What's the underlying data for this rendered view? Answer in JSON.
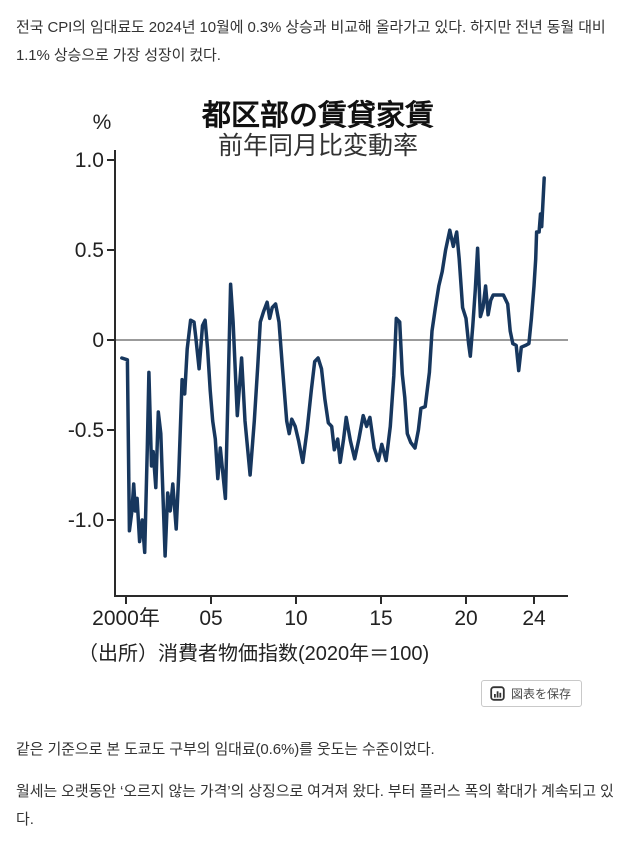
{
  "article": {
    "p1": "전국 CPI의 임대료도 2024년 10월에 0.3% 상승과 비교해 올라가고 있다. 하지만 전년 동월 대비 1.1% 상승으로 가장 성장이 컸다.",
    "p2": "같은 기준으로 본 도쿄도 구부의 임대료(0.6%)를 웃도는 수준이었다.",
    "p3": "월세는 오랫동안 ‘오르지 않는 가격’의 상징으로 여겨져 왔다. 부터 플러스 폭의 확대가 계속되고 있다."
  },
  "chart": {
    "save_button": {
      "label": "図表を保存",
      "icon": "bar-chart-icon"
    }
  },
  "chart_data": {
    "type": "line",
    "title": "都区部の賃貸家賃",
    "subtitle": "前年同月比変動率",
    "unit_label": "%",
    "source": "（出所）消費者物価指数(2020年＝100)",
    "line_color": "#17375e",
    "axis_color": "#2a2a2a",
    "zero_line_color": "#7a7a7a",
    "xlabel": "",
    "ylabel": "%",
    "ylim": [
      -1.45,
      1.05
    ],
    "xlim": [
      1999.5,
      2026.0
    ],
    "grid": "zero-line-only",
    "legend": "none",
    "y_ticks": [
      {
        "label": "1.0",
        "value": 1.0
      },
      {
        "label": "0.5",
        "value": 0.5
      },
      {
        "label": "0",
        "value": 0.0
      },
      {
        "label": "-0.5",
        "value": -0.5
      },
      {
        "label": "-1.0",
        "value": -1.0
      }
    ],
    "x_ticks": [
      {
        "label": "2000年",
        "value": 2000
      },
      {
        "label": "05",
        "value": 2005
      },
      {
        "label": "10",
        "value": 2010
      },
      {
        "label": "15",
        "value": 2015
      },
      {
        "label": "20",
        "value": 2020
      },
      {
        "label": "24",
        "value": 2024
      }
    ],
    "series": [
      {
        "name": "都区部の賃貸家賃 前年同月比変動率 (%)",
        "points": [
          [
            1999.75,
            -0.1
          ],
          [
            2000.08,
            -0.11
          ],
          [
            2000.2,
            -1.06
          ],
          [
            2000.35,
            -0.95
          ],
          [
            2000.45,
            -0.8
          ],
          [
            2000.55,
            -0.95
          ],
          [
            2000.65,
            -0.88
          ],
          [
            2000.8,
            -1.12
          ],
          [
            2000.95,
            -1.0
          ],
          [
            2001.1,
            -1.18
          ],
          [
            2001.25,
            -0.6
          ],
          [
            2001.35,
            -0.18
          ],
          [
            2001.5,
            -0.7
          ],
          [
            2001.6,
            -0.62
          ],
          [
            2001.75,
            -0.82
          ],
          [
            2001.9,
            -0.4
          ],
          [
            2002.05,
            -0.52
          ],
          [
            2002.3,
            -1.2
          ],
          [
            2002.45,
            -0.85
          ],
          [
            2002.6,
            -0.95
          ],
          [
            2002.75,
            -0.8
          ],
          [
            2002.95,
            -1.05
          ],
          [
            2003.1,
            -0.75
          ],
          [
            2003.3,
            -0.22
          ],
          [
            2003.45,
            -0.3
          ],
          [
            2003.6,
            -0.05
          ],
          [
            2003.8,
            0.11
          ],
          [
            2004.0,
            0.1
          ],
          [
            2004.1,
            0.02
          ],
          [
            2004.3,
            -0.16
          ],
          [
            2004.5,
            0.08
          ],
          [
            2004.65,
            0.11
          ],
          [
            2004.8,
            -0.05
          ],
          [
            2004.95,
            -0.28
          ],
          [
            2005.1,
            -0.45
          ],
          [
            2005.25,
            -0.55
          ],
          [
            2005.4,
            -0.77
          ],
          [
            2005.55,
            -0.6
          ],
          [
            2005.85,
            -0.88
          ],
          [
            2006.0,
            -0.3
          ],
          [
            2006.15,
            0.31
          ],
          [
            2006.3,
            0.1
          ],
          [
            2006.55,
            -0.42
          ],
          [
            2006.8,
            -0.1
          ],
          [
            2007.0,
            -0.45
          ],
          [
            2007.3,
            -0.75
          ],
          [
            2007.55,
            -0.45
          ],
          [
            2007.75,
            -0.14
          ],
          [
            2007.9,
            0.1
          ],
          [
            2008.1,
            0.16
          ],
          [
            2008.3,
            0.21
          ],
          [
            2008.45,
            0.12
          ],
          [
            2008.6,
            0.18
          ],
          [
            2008.8,
            0.2
          ],
          [
            2009.0,
            0.1
          ],
          [
            2009.2,
            -0.15
          ],
          [
            2009.45,
            -0.45
          ],
          [
            2009.6,
            -0.52
          ],
          [
            2009.75,
            -0.44
          ],
          [
            2009.95,
            -0.48
          ],
          [
            2010.15,
            -0.56
          ],
          [
            2010.4,
            -0.68
          ],
          [
            2010.65,
            -0.5
          ],
          [
            2010.9,
            -0.28
          ],
          [
            2011.1,
            -0.12
          ],
          [
            2011.3,
            -0.1
          ],
          [
            2011.5,
            -0.16
          ],
          [
            2011.7,
            -0.33
          ],
          [
            2011.9,
            -0.46
          ],
          [
            2012.1,
            -0.48
          ],
          [
            2012.25,
            -0.61
          ],
          [
            2012.45,
            -0.55
          ],
          [
            2012.6,
            -0.68
          ],
          [
            2012.8,
            -0.55
          ],
          [
            2012.95,
            -0.43
          ],
          [
            2013.2,
            -0.56
          ],
          [
            2013.45,
            -0.66
          ],
          [
            2013.7,
            -0.55
          ],
          [
            2013.95,
            -0.42
          ],
          [
            2014.15,
            -0.48
          ],
          [
            2014.35,
            -0.43
          ],
          [
            2014.6,
            -0.6
          ],
          [
            2014.85,
            -0.67
          ],
          [
            2015.05,
            -0.58
          ],
          [
            2015.3,
            -0.67
          ],
          [
            2015.55,
            -0.48
          ],
          [
            2015.75,
            -0.2
          ],
          [
            2015.9,
            0.12
          ],
          [
            2016.1,
            0.1
          ],
          [
            2016.25,
            -0.19
          ],
          [
            2016.4,
            -0.32
          ],
          [
            2016.55,
            -0.52
          ],
          [
            2016.75,
            -0.57
          ],
          [
            2017.0,
            -0.6
          ],
          [
            2017.2,
            -0.5
          ],
          [
            2017.35,
            -0.38
          ],
          [
            2017.6,
            -0.37
          ],
          [
            2017.85,
            -0.18
          ],
          [
            2018.0,
            0.05
          ],
          [
            2018.2,
            0.18
          ],
          [
            2018.4,
            0.3
          ],
          [
            2018.6,
            0.38
          ],
          [
            2018.8,
            0.5
          ],
          [
            2019.05,
            0.61
          ],
          [
            2019.25,
            0.52
          ],
          [
            2019.45,
            0.6
          ],
          [
            2019.6,
            0.45
          ],
          [
            2019.8,
            0.18
          ],
          [
            2020.0,
            0.12
          ],
          [
            2020.15,
            -0.02
          ],
          [
            2020.25,
            -0.09
          ],
          [
            2020.4,
            0.08
          ],
          [
            2020.55,
            0.28
          ],
          [
            2020.68,
            0.51
          ],
          [
            2020.85,
            0.13
          ],
          [
            2021.0,
            0.18
          ],
          [
            2021.15,
            0.3
          ],
          [
            2021.3,
            0.14
          ],
          [
            2021.45,
            0.22
          ],
          [
            2021.6,
            0.25
          ],
          [
            2021.9,
            0.25
          ],
          [
            2022.2,
            0.25
          ],
          [
            2022.45,
            0.2
          ],
          [
            2022.6,
            0.05
          ],
          [
            2022.75,
            -0.02
          ],
          [
            2022.95,
            -0.03
          ],
          [
            2023.1,
            -0.17
          ],
          [
            2023.25,
            -0.04
          ],
          [
            2023.5,
            -0.03
          ],
          [
            2023.7,
            -0.02
          ],
          [
            2023.85,
            0.12
          ],
          [
            2024.0,
            0.3
          ],
          [
            2024.1,
            0.45
          ],
          [
            2024.15,
            0.6
          ],
          [
            2024.3,
            0.6
          ],
          [
            2024.38,
            0.7
          ],
          [
            2024.45,
            0.63
          ],
          [
            2024.6,
            0.9
          ]
        ]
      }
    ]
  }
}
